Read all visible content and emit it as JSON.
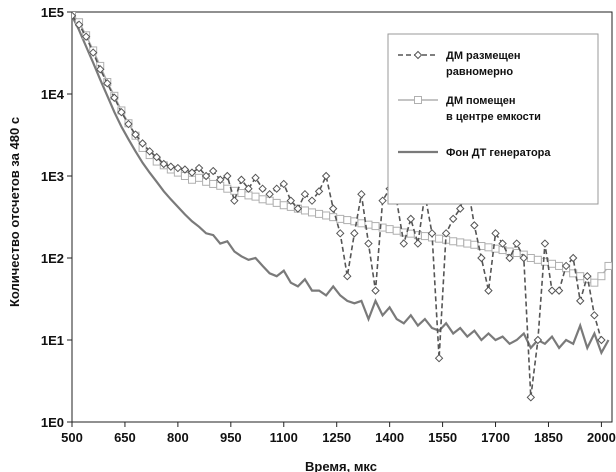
{
  "chart_data": {
    "type": "line",
    "title": "",
    "xlabel": "Время, мкс",
    "ylabel": "Количество отсчетов за 480 с",
    "xlim": [
      500,
      2030
    ],
    "ylim": [
      1,
      100000
    ],
    "yscale": "log",
    "xticks": [
      "500",
      "650",
      "800",
      "950",
      "1100",
      "1250",
      "1400",
      "1550",
      "1700",
      "1850",
      "2000"
    ],
    "yticks": [
      "1E0",
      "1E1",
      "1E2",
      "1E3",
      "1E4",
      "1E5"
    ],
    "grid": false,
    "legend_position": "top-right",
    "series": [
      {
        "name_lines": [
          "ДМ размещен",
          "равномерно"
        ],
        "color": "#555555",
        "style": "dashed",
        "marker": "diamond",
        "points": [
          [
            500,
            90000
          ],
          [
            520,
            70000
          ],
          [
            540,
            50000
          ],
          [
            560,
            32000
          ],
          [
            580,
            20000
          ],
          [
            600,
            13500
          ],
          [
            620,
            9000
          ],
          [
            640,
            6000
          ],
          [
            660,
            4300
          ],
          [
            680,
            3200
          ],
          [
            700,
            2500
          ],
          [
            720,
            2000
          ],
          [
            740,
            1700
          ],
          [
            760,
            1400
          ],
          [
            780,
            1300
          ],
          [
            800,
            1250
          ],
          [
            820,
            1200
          ],
          [
            840,
            1100
          ],
          [
            860,
            1250
          ],
          [
            880,
            1000
          ],
          [
            900,
            1150
          ],
          [
            920,
            900
          ],
          [
            940,
            1000
          ],
          [
            960,
            500
          ],
          [
            980,
            900
          ],
          [
            1000,
            700
          ],
          [
            1020,
            950
          ],
          [
            1040,
            700
          ],
          [
            1060,
            600
          ],
          [
            1080,
            700
          ],
          [
            1100,
            800
          ],
          [
            1120,
            500
          ],
          [
            1140,
            400
          ],
          [
            1160,
            600
          ],
          [
            1180,
            500
          ],
          [
            1200,
            650
          ],
          [
            1220,
            1000
          ],
          [
            1240,
            400
          ],
          [
            1260,
            200
          ],
          [
            1280,
            60
          ],
          [
            1300,
            200
          ],
          [
            1320,
            600
          ],
          [
            1340,
            150
          ],
          [
            1360,
            40
          ],
          [
            1380,
            500
          ],
          [
            1400,
            700
          ],
          [
            1420,
            500
          ],
          [
            1440,
            150
          ],
          [
            1460,
            300
          ],
          [
            1480,
            150
          ],
          [
            1500,
            600
          ],
          [
            1520,
            200
          ],
          [
            1540,
            6
          ],
          [
            1560,
            200
          ],
          [
            1580,
            300
          ],
          [
            1600,
            400
          ],
          [
            1620,
            800
          ],
          [
            1640,
            250
          ],
          [
            1660,
            100
          ],
          [
            1680,
            40
          ],
          [
            1700,
            200
          ],
          [
            1720,
            150
          ],
          [
            1740,
            100
          ],
          [
            1760,
            150
          ],
          [
            1780,
            100
          ],
          [
            1800,
            2
          ],
          [
            1820,
            10
          ],
          [
            1840,
            150
          ],
          [
            1860,
            40
          ],
          [
            1880,
            40
          ],
          [
            1900,
            80
          ],
          [
            1920,
            100
          ],
          [
            1940,
            30
          ],
          [
            1960,
            60
          ],
          [
            1980,
            20
          ],
          [
            2000,
            10
          ]
        ]
      },
      {
        "name_lines": [
          "ДМ помещен",
          "в центре емкости"
        ],
        "color": "#b0b0b0",
        "style": "solid",
        "marker": "square",
        "points": [
          [
            500,
            95000
          ],
          [
            520,
            75000
          ],
          [
            540,
            52000
          ],
          [
            560,
            34000
          ],
          [
            580,
            22000
          ],
          [
            600,
            14000
          ],
          [
            620,
            9500
          ],
          [
            640,
            6300
          ],
          [
            660,
            4400
          ],
          [
            680,
            3100
          ],
          [
            700,
            2200
          ],
          [
            720,
            1800
          ],
          [
            740,
            1500
          ],
          [
            760,
            1350
          ],
          [
            780,
            1200
          ],
          [
            800,
            1100
          ],
          [
            820,
            1000
          ],
          [
            840,
            900
          ],
          [
            860,
            950
          ],
          [
            880,
            850
          ],
          [
            900,
            800
          ],
          [
            920,
            760
          ],
          [
            940,
            700
          ],
          [
            960,
            660
          ],
          [
            980,
            620
          ],
          [
            1000,
            580
          ],
          [
            1020,
            560
          ],
          [
            1040,
            520
          ],
          [
            1060,
            500
          ],
          [
            1080,
            470
          ],
          [
            1100,
            440
          ],
          [
            1120,
            420
          ],
          [
            1140,
            400
          ],
          [
            1160,
            380
          ],
          [
            1180,
            360
          ],
          [
            1200,
            345
          ],
          [
            1220,
            330
          ],
          [
            1240,
            315
          ],
          [
            1260,
            300
          ],
          [
            1280,
            290
          ],
          [
            1300,
            280
          ],
          [
            1320,
            265
          ],
          [
            1340,
            255
          ],
          [
            1360,
            245
          ],
          [
            1380,
            235
          ],
          [
            1400,
            225
          ],
          [
            1420,
            215
          ],
          [
            1440,
            205
          ],
          [
            1460,
            198
          ],
          [
            1480,
            190
          ],
          [
            1500,
            185
          ],
          [
            1520,
            178
          ],
          [
            1540,
            172
          ],
          [
            1560,
            167
          ],
          [
            1580,
            160
          ],
          [
            1600,
            155
          ],
          [
            1620,
            150
          ],
          [
            1640,
            145
          ],
          [
            1660,
            140
          ],
          [
            1680,
            135
          ],
          [
            1700,
            130
          ],
          [
            1720,
            125
          ],
          [
            1740,
            120
          ],
          [
            1760,
            115
          ],
          [
            1780,
            110
          ],
          [
            1800,
            100
          ],
          [
            1820,
            95
          ],
          [
            1840,
            90
          ],
          [
            1860,
            85
          ],
          [
            1880,
            80
          ],
          [
            1900,
            75
          ],
          [
            1920,
            65
          ],
          [
            1940,
            60
          ],
          [
            1960,
            55
          ],
          [
            1980,
            50
          ],
          [
            2000,
            60
          ],
          [
            2020,
            80
          ]
        ]
      },
      {
        "name_lines": [
          "Фон ДТ генератора"
        ],
        "color": "#7a7a7a",
        "style": "solid",
        "marker": "none",
        "points": [
          [
            500,
            90000
          ],
          [
            520,
            60000
          ],
          [
            540,
            38000
          ],
          [
            560,
            24000
          ],
          [
            580,
            15000
          ],
          [
            600,
            9500
          ],
          [
            620,
            6000
          ],
          [
            640,
            4000
          ],
          [
            660,
            2800
          ],
          [
            680,
            2000
          ],
          [
            700,
            1450
          ],
          [
            720,
            1100
          ],
          [
            740,
            850
          ],
          [
            760,
            650
          ],
          [
            780,
            520
          ],
          [
            800,
            420
          ],
          [
            820,
            340
          ],
          [
            840,
            280
          ],
          [
            860,
            240
          ],
          [
            880,
            200
          ],
          [
            900,
            190
          ],
          [
            920,
            150
          ],
          [
            940,
            160
          ],
          [
            960,
            120
          ],
          [
            980,
            105
          ],
          [
            1000,
            95
          ],
          [
            1020,
            100
          ],
          [
            1040,
            80
          ],
          [
            1060,
            65
          ],
          [
            1080,
            60
          ],
          [
            1100,
            70
          ],
          [
            1120,
            50
          ],
          [
            1140,
            45
          ],
          [
            1160,
            55
          ],
          [
            1180,
            40
          ],
          [
            1200,
            40
          ],
          [
            1220,
            35
          ],
          [
            1240,
            45
          ],
          [
            1260,
            35
          ],
          [
            1280,
            30
          ],
          [
            1300,
            28
          ],
          [
            1320,
            30
          ],
          [
            1340,
            18
          ],
          [
            1360,
            30
          ],
          [
            1380,
            20
          ],
          [
            1400,
            25
          ],
          [
            1420,
            18
          ],
          [
            1440,
            16
          ],
          [
            1460,
            20
          ],
          [
            1480,
            15
          ],
          [
            1500,
            18
          ],
          [
            1520,
            14
          ],
          [
            1540,
            13
          ],
          [
            1560,
            16
          ],
          [
            1580,
            12
          ],
          [
            1600,
            14
          ],
          [
            1620,
            11
          ],
          [
            1640,
            13
          ],
          [
            1660,
            10
          ],
          [
            1680,
            12
          ],
          [
            1700,
            10
          ],
          [
            1720,
            11
          ],
          [
            1740,
            9
          ],
          [
            1760,
            10
          ],
          [
            1780,
            12
          ],
          [
            1800,
            8
          ],
          [
            1820,
            10
          ],
          [
            1840,
            9
          ],
          [
            1860,
            11
          ],
          [
            1880,
            8
          ],
          [
            1900,
            10
          ],
          [
            1920,
            9
          ],
          [
            1940,
            15
          ],
          [
            1960,
            8
          ],
          [
            1980,
            12
          ],
          [
            2000,
            7
          ],
          [
            2020,
            10
          ]
        ]
      }
    ]
  }
}
